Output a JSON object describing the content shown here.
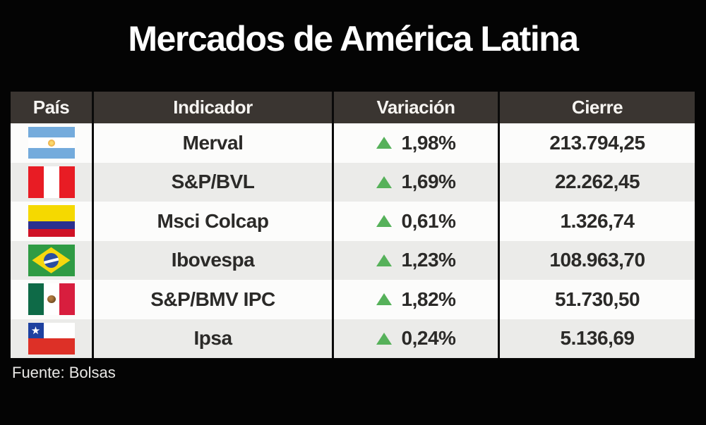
{
  "title": "Mercados de América Latina",
  "source_note": "Fuente: Bolsas",
  "colors": {
    "background": "#040404",
    "header_bg": "#3a3531",
    "row_white": "#fcfcfb",
    "row_alt": "#ebebe9",
    "up_green": "#56b15a",
    "body_text": "#2b2a28"
  },
  "table": {
    "headers": [
      "País",
      "Indicador",
      "Variación",
      "Cierre"
    ],
    "rows": [
      {
        "country": "Argentina",
        "flag_icon": "argentina-flag-icon",
        "indicator": "Merval",
        "direction": "up",
        "variation": "1,98%",
        "close": "213.794,25"
      },
      {
        "country": "Perú",
        "flag_icon": "peru-flag-icon",
        "indicator": "S&P/BVL",
        "direction": "up",
        "variation": "1,69%",
        "close": "22.262,45"
      },
      {
        "country": "Colombia",
        "flag_icon": "colombia-flag-icon",
        "indicator": "Msci Colcap",
        "direction": "up",
        "variation": "0,61%",
        "close": "1.326,74"
      },
      {
        "country": "Brasil",
        "flag_icon": "brazil-flag-icon",
        "indicator": "Ibovespa",
        "direction": "up",
        "variation": "1,23%",
        "close": "108.963,70"
      },
      {
        "country": "México",
        "flag_icon": "mexico-flag-icon",
        "indicator": "S&P/BMV IPC",
        "direction": "up",
        "variation": "1,82%",
        "close": "51.730,50"
      },
      {
        "country": "Chile",
        "flag_icon": "chile-flag-icon",
        "indicator": "Ipsa",
        "direction": "up",
        "variation": "0,24%",
        "close": "5.136,69"
      }
    ]
  },
  "chart_data": {
    "type": "table",
    "title": "Mercados de América Latina",
    "columns": [
      "País",
      "Indicador",
      "Variación",
      "Cierre"
    ],
    "rows": [
      [
        "Argentina",
        "Merval",
        "+1,98%",
        "213.794,25"
      ],
      [
        "Perú",
        "S&P/BVL",
        "+1,69%",
        "22.262,45"
      ],
      [
        "Colombia",
        "Msci Colcap",
        "+0,61%",
        "1.326,74"
      ],
      [
        "Brasil",
        "Ibovespa",
        "+1,23%",
        "108.963,70"
      ],
      [
        "México",
        "S&P/BMV IPC",
        "+1,82%",
        "51.730,50"
      ],
      [
        "Chile",
        "Ipsa",
        "+0,24%",
        "5.136,69"
      ]
    ],
    "variation_numeric_pct": [
      1.98,
      1.69,
      0.61,
      1.23,
      1.82,
      0.24
    ],
    "close_numeric": [
      213794.25,
      22262.45,
      1326.74,
      108963.7,
      51730.5,
      5136.69
    ],
    "all_directions": "up",
    "source": "Bolsas"
  }
}
